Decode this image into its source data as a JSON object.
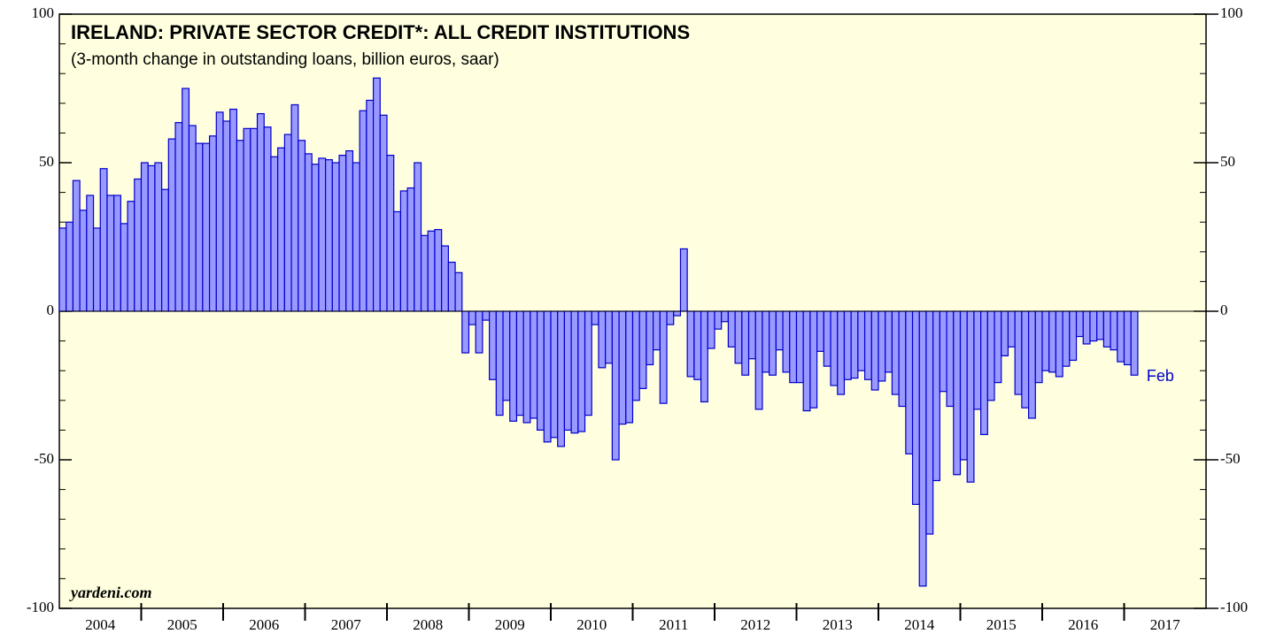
{
  "chart_data": {
    "type": "bar",
    "title": "IRELAND: PRIVATE SECTOR CREDIT*: ALL CREDIT INSTITUTIONS",
    "subtitle": "(3-month change in outstanding loans, billion euros, saar)",
    "source": "yardeni.com",
    "annotation": "Feb",
    "x_labels": [
      "2004",
      "2005",
      "2006",
      "2007",
      "2008",
      "2009",
      "2010",
      "2011",
      "2012",
      "2013",
      "2014",
      "2015",
      "2016",
      "2017"
    ],
    "values": [
      28,
      30,
      44,
      34,
      39,
      28,
      48,
      39,
      39,
      29.5,
      37,
      44.5,
      50,
      49,
      50,
      41,
      58,
      63.5,
      75,
      62.5,
      56.5,
      56.5,
      59,
      67,
      64,
      68,
      57.5,
      61.5,
      61.5,
      66.5,
      62,
      52,
      55,
      59.5,
      69.5,
      57.5,
      53,
      49.5,
      51.5,
      51,
      50,
      52.5,
      54,
      50,
      67.5,
      71,
      78.5,
      66,
      52.5,
      33.5,
      40.5,
      41.5,
      50,
      25.5,
      27,
      27.5,
      22,
      16.5,
      13,
      -14,
      -4.5,
      -14,
      -3,
      -23,
      -35,
      -30,
      -37,
      -35,
      -37.5,
      -36,
      -40,
      -44,
      -42.5,
      -45.5,
      -40,
      -41,
      -40.5,
      -35,
      -4.5,
      -19,
      -17.5,
      -50,
      -38,
      -37.5,
      -30,
      -26,
      -18,
      -13,
      -31,
      -4.5,
      -1.5,
      21,
      -22,
      -23,
      -30.5,
      -12.5,
      -6,
      -3.5,
      -12,
      -17.5,
      -21.5,
      -16,
      -33,
      -20.5,
      -21.5,
      -13,
      -20.5,
      -24,
      -24,
      -33.5,
      -32.5,
      -13.5,
      -18.5,
      -25,
      -28,
      -23,
      -22.5,
      -20,
      -23,
      -26.5,
      -23.5,
      -20.5,
      -28,
      -32,
      -48,
      -65,
      -92.5,
      -75,
      -57,
      -27,
      -32,
      -55,
      -50,
      -57.5,
      -33,
      -41.5,
      -30,
      -24,
      -15,
      -12,
      -28,
      -32.5,
      -36,
      -24,
      -20,
      -20.5,
      -22,
      -18.5,
      -16.5,
      -8.5,
      -11,
      -10,
      -9.5,
      -12,
      -13,
      -17,
      -18,
      -21.5
    ],
    "color": "#9999ff",
    "edge_color": "#0000cc",
    "background": "#ffffe0",
    "ylim": [
      -100,
      100
    ],
    "yticks": [
      -100,
      -50,
      0,
      50,
      100
    ],
    "yminorticks": [
      -90,
      -80,
      -70,
      -60,
      -40,
      -30,
      -20,
      -10,
      10,
      20,
      30,
      40,
      60,
      70,
      80,
      90
    ]
  }
}
